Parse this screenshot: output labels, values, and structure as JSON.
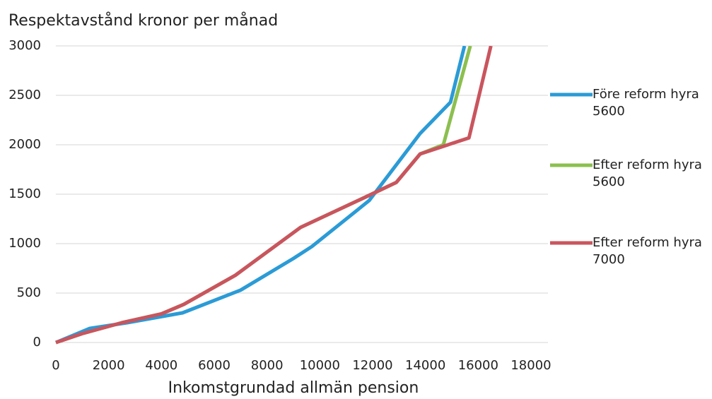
{
  "chart_data": {
    "type": "line",
    "title": "Respektavstånd kronor per månad",
    "x_label": "Inkomstgrundad allmän pension",
    "xlim": [
      0,
      18000
    ],
    "xticks": [
      0,
      2000,
      4000,
      6000,
      8000,
      10000,
      12000,
      14000,
      16000,
      18000
    ],
    "ylim": [
      0,
      3000
    ],
    "yticks": [
      0,
      500,
      1000,
      1500,
      2000,
      2500,
      3000
    ],
    "grid": true,
    "legend": "right",
    "series": [
      {
        "name": "Efter reform hyra 5600",
        "color": "#8cbf4f",
        "x": [
          0,
          1000,
          2500,
          4000,
          4850,
          6800,
          9270,
          11800,
          12900,
          13800,
          14680,
          15700
        ],
        "values": [
          0,
          90,
          200,
          290,
          386,
          680,
          1164,
          1480,
          1620,
          1907,
          2000,
          3000
        ]
      },
      {
        "name": "Före reform hyra 5600",
        "color": "#2b9bd6",
        "x": [
          0,
          1290,
          2700,
          4800,
          7000,
          9000,
          9700,
          11870,
          13800,
          14950,
          15480
        ],
        "values": [
          0,
          143,
          200,
          300,
          530,
          850,
          971,
          1436,
          2114,
          2430,
          3000
        ]
      },
      {
        "name": "Efter reform hyra 7000",
        "color": "#c9555e",
        "x": [
          0,
          1000,
          2500,
          4000,
          4850,
          6800,
          9270,
          11800,
          12900,
          13800,
          15650,
          16480
        ],
        "values": [
          0,
          90,
          200,
          290,
          386,
          680,
          1164,
          1480,
          1620,
          1907,
          2070,
          3000
        ]
      }
    ]
  }
}
